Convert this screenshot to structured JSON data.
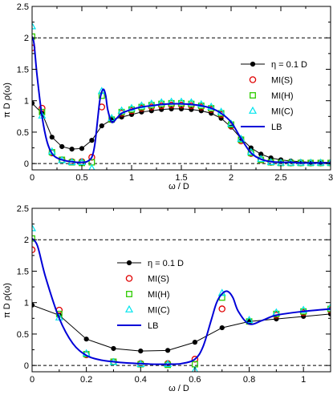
{
  "chart_data": [
    {
      "type": "line",
      "xlabel": "ω / D",
      "ylabel": "π D ρ(ω)",
      "xlim": [
        0,
        3
      ],
      "ylim": [
        -0.1,
        2.5
      ],
      "xticks": [
        "0",
        "0.5",
        "1",
        "1.5",
        "2",
        "2.5",
        "3"
      ],
      "yticks": [
        "0",
        "0.5",
        "1",
        "1.5",
        "2",
        "2.5"
      ],
      "reference_lines": [
        0,
        2
      ],
      "legend_placement": "right",
      "series": [
        {
          "name": "η = 0.1 D",
          "style": "line-markers",
          "color": "#000000",
          "x": [
            0,
            0.1,
            0.2,
            0.3,
            0.4,
            0.5,
            0.6,
            0.7,
            0.8,
            0.9,
            1.0,
            1.1,
            1.2,
            1.3,
            1.4,
            1.5,
            1.6,
            1.7,
            1.8,
            1.9,
            2.0,
            2.1,
            2.2,
            2.3,
            2.4,
            2.5,
            2.6,
            2.7,
            2.8,
            2.9,
            3.0
          ],
          "values": [
            0.96,
            0.8,
            0.42,
            0.27,
            0.23,
            0.24,
            0.37,
            0.6,
            0.7,
            0.74,
            0.78,
            0.82,
            0.84,
            0.86,
            0.87,
            0.87,
            0.86,
            0.84,
            0.8,
            0.72,
            0.58,
            0.4,
            0.25,
            0.15,
            0.09,
            0.06,
            0.04,
            0.03,
            0.02,
            0.02,
            0.02
          ]
        },
        {
          "name": "MI(S)",
          "style": "markers",
          "marker": "circle",
          "color": "#e00000",
          "x": [
            0,
            0.1,
            0.2,
            0.3,
            0.4,
            0.5,
            0.6,
            0.7,
            0.8,
            0.9,
            1.0,
            1.1,
            1.2,
            1.3,
            1.4,
            1.5,
            1.6,
            1.7,
            1.8,
            1.9,
            2.0,
            2.1,
            2.2,
            2.3,
            2.4,
            2.5,
            2.6,
            2.7,
            2.8,
            2.9,
            3.0
          ],
          "values": [
            1.84,
            0.88,
            0.17,
            0.06,
            0.03,
            0.03,
            0.1,
            0.9,
            0.7,
            0.8,
            0.84,
            0.88,
            0.9,
            0.92,
            0.93,
            0.93,
            0.92,
            0.9,
            0.86,
            0.78,
            0.6,
            0.36,
            0.16,
            0.06,
            0.02,
            0.01,
            0.01,
            0.01,
            0.01,
            0.01,
            0.01
          ]
        },
        {
          "name": "MI(H)",
          "style": "markers",
          "marker": "square",
          "color": "#2ecc00",
          "x": [
            0,
            0.1,
            0.2,
            0.3,
            0.4,
            0.5,
            0.6,
            0.7,
            0.8,
            0.9,
            1.0,
            1.1,
            1.2,
            1.3,
            1.4,
            1.5,
            1.6,
            1.7,
            1.8,
            1.9,
            2.0,
            2.1,
            2.2,
            2.3,
            2.4,
            2.5,
            2.6,
            2.7,
            2.8,
            2.9,
            3.0
          ],
          "values": [
            2.02,
            0.82,
            0.18,
            0.06,
            0.02,
            0.01,
            0.02,
            1.08,
            0.7,
            0.82,
            0.86,
            0.9,
            0.93,
            0.95,
            0.96,
            0.96,
            0.95,
            0.92,
            0.88,
            0.8,
            0.62,
            0.38,
            0.17,
            0.06,
            0.02,
            0.01,
            0.01,
            0.01,
            0.01,
            0.01,
            0.01
          ]
        },
        {
          "name": "MI(C)",
          "style": "markers",
          "marker": "triangle",
          "color": "#00e5ee",
          "x": [
            0,
            0.1,
            0.2,
            0.3,
            0.4,
            0.5,
            0.6,
            0.7,
            0.8,
            0.9,
            1.0,
            1.1,
            1.2,
            1.3,
            1.4,
            1.5,
            1.6,
            1.7,
            1.8,
            1.9,
            2.0,
            2.1,
            2.2,
            2.3,
            2.4,
            2.5,
            2.6,
            2.7,
            2.8,
            2.9,
            3.0
          ],
          "values": [
            2.18,
            0.76,
            0.19,
            0.05,
            0.02,
            0.02,
            -0.08,
            1.15,
            0.72,
            0.84,
            0.88,
            0.92,
            0.95,
            0.97,
            0.98,
            0.98,
            0.97,
            0.94,
            0.9,
            0.82,
            0.63,
            0.39,
            0.18,
            0.07,
            0.02,
            0.01,
            0.01,
            0.01,
            0.01,
            0.01,
            0.01
          ]
        },
        {
          "name": "LB",
          "style": "line",
          "color": "#0000d8",
          "x": [
            0,
            0.02,
            0.05,
            0.1,
            0.15,
            0.2,
            0.25,
            0.3,
            0.35,
            0.4,
            0.45,
            0.5,
            0.55,
            0.6,
            0.63,
            0.66,
            0.68,
            0.7,
            0.72,
            0.74,
            0.76,
            0.8,
            0.85,
            0.9,
            1.0,
            1.1,
            1.2,
            1.3,
            1.4,
            1.5,
            1.6,
            1.7,
            1.8,
            1.9,
            2.0,
            2.1,
            2.2,
            2.3,
            2.4,
            2.5,
            2.6,
            2.7,
            2.8,
            2.9,
            3.0
          ],
          "values": [
            2.02,
            1.9,
            1.4,
            0.75,
            0.35,
            0.16,
            0.09,
            0.06,
            0.04,
            0.03,
            0.02,
            0.02,
            0.03,
            0.1,
            0.3,
            0.72,
            1.0,
            1.14,
            1.18,
            1.08,
            0.86,
            0.66,
            0.72,
            0.8,
            0.86,
            0.9,
            0.92,
            0.94,
            0.95,
            0.95,
            0.94,
            0.92,
            0.88,
            0.8,
            0.66,
            0.4,
            0.17,
            0.07,
            0.03,
            0.02,
            0.02,
            0.01,
            0.01,
            0.01,
            0.01
          ]
        }
      ]
    },
    {
      "type": "line",
      "xlabel": "ω / D",
      "ylabel": "π D ρ(ω)",
      "xlim": [
        0,
        1.1
      ],
      "ylim": [
        -0.1,
        2.5
      ],
      "xticks": [
        "0",
        "0.2",
        "0.4",
        "0.6",
        "0.8",
        "1"
      ],
      "yticks": [
        "0",
        "0.5",
        "1",
        "1.5",
        "2",
        "2.5"
      ],
      "reference_lines": [
        0,
        2
      ],
      "legend_placement": "center",
      "series": [
        {
          "name": "η = 0.1 D",
          "style": "line-markers",
          "color": "#000000",
          "x": [
            0,
            0.1,
            0.2,
            0.3,
            0.4,
            0.5,
            0.6,
            0.7,
            0.8,
            0.9,
            1.0,
            1.1
          ],
          "values": [
            0.96,
            0.8,
            0.42,
            0.27,
            0.23,
            0.24,
            0.37,
            0.6,
            0.7,
            0.74,
            0.78,
            0.82
          ]
        },
        {
          "name": "MI(S)",
          "style": "markers",
          "marker": "circle",
          "color": "#e00000",
          "x": [
            0,
            0.1,
            0.2,
            0.3,
            0.4,
            0.5,
            0.6,
            0.7,
            0.8,
            0.9,
            1.0,
            1.1
          ],
          "values": [
            1.84,
            0.88,
            0.17,
            0.06,
            0.03,
            0.03,
            0.1,
            0.9,
            0.7,
            0.8,
            0.84,
            0.88
          ]
        },
        {
          "name": "MI(H)",
          "style": "markers",
          "marker": "square",
          "color": "#2ecc00",
          "x": [
            0,
            0.1,
            0.2,
            0.3,
            0.4,
            0.5,
            0.6,
            0.7,
            0.8,
            0.9,
            1.0,
            1.1
          ],
          "values": [
            2.02,
            0.82,
            0.18,
            0.06,
            0.02,
            0.01,
            0.02,
            1.08,
            0.7,
            0.82,
            0.86,
            0.9
          ]
        },
        {
          "name": "MI(C)",
          "style": "markers",
          "marker": "triangle",
          "color": "#00e5ee",
          "x": [
            0,
            0.1,
            0.2,
            0.3,
            0.4,
            0.5,
            0.6,
            0.7,
            0.8,
            0.9,
            1.0,
            1.1
          ],
          "values": [
            2.18,
            0.76,
            0.19,
            0.05,
            0.02,
            0.02,
            -0.08,
            1.15,
            0.72,
            0.84,
            0.88,
            0.92
          ]
        },
        {
          "name": "LB",
          "style": "line",
          "color": "#0000d8",
          "x": [
            0,
            0.02,
            0.05,
            0.1,
            0.15,
            0.2,
            0.25,
            0.3,
            0.35,
            0.4,
            0.45,
            0.5,
            0.55,
            0.6,
            0.63,
            0.66,
            0.68,
            0.7,
            0.72,
            0.74,
            0.76,
            0.8,
            0.85,
            0.9,
            1.0,
            1.1
          ],
          "values": [
            2.02,
            1.9,
            1.4,
            0.75,
            0.35,
            0.16,
            0.09,
            0.06,
            0.04,
            0.03,
            0.02,
            0.02,
            0.03,
            0.1,
            0.3,
            0.72,
            1.0,
            1.14,
            1.18,
            1.08,
            0.86,
            0.66,
            0.72,
            0.8,
            0.86,
            0.9
          ]
        }
      ]
    }
  ]
}
